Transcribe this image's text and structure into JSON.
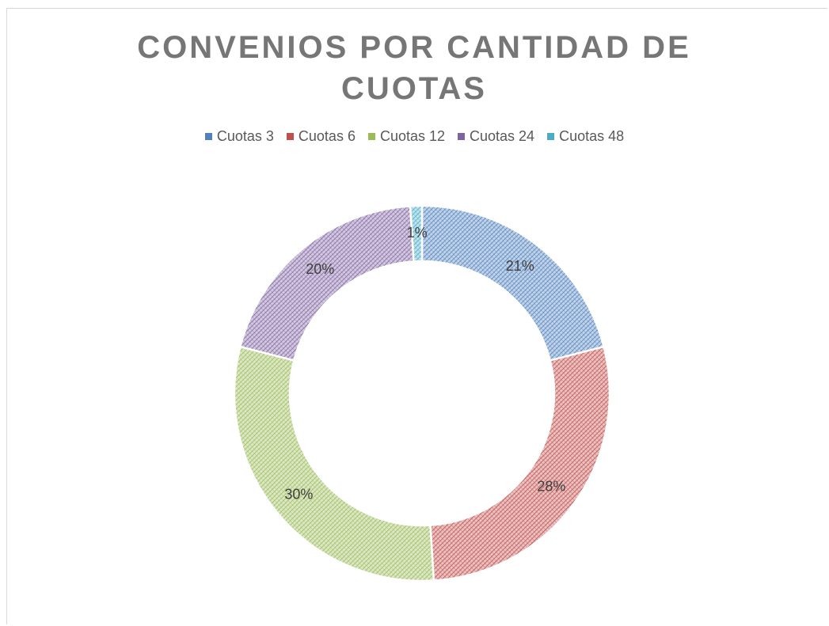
{
  "chart_data": {
    "type": "doughnut",
    "title": "CONVENIOS POR CANTIDAD DE CUOTAS",
    "categories": [
      "Cuotas 3",
      "Cuotas 6",
      "Cuotas 12",
      "Cuotas 24",
      "Cuotas 48"
    ],
    "values": [
      21,
      28,
      30,
      20,
      1
    ],
    "value_labels": [
      "21%",
      "28%",
      "30%",
      "20%",
      "1%"
    ],
    "colors": [
      "#4f81bd",
      "#c0504d",
      "#9bbb59",
      "#8064a2",
      "#4bacc6"
    ],
    "legend": "top"
  }
}
